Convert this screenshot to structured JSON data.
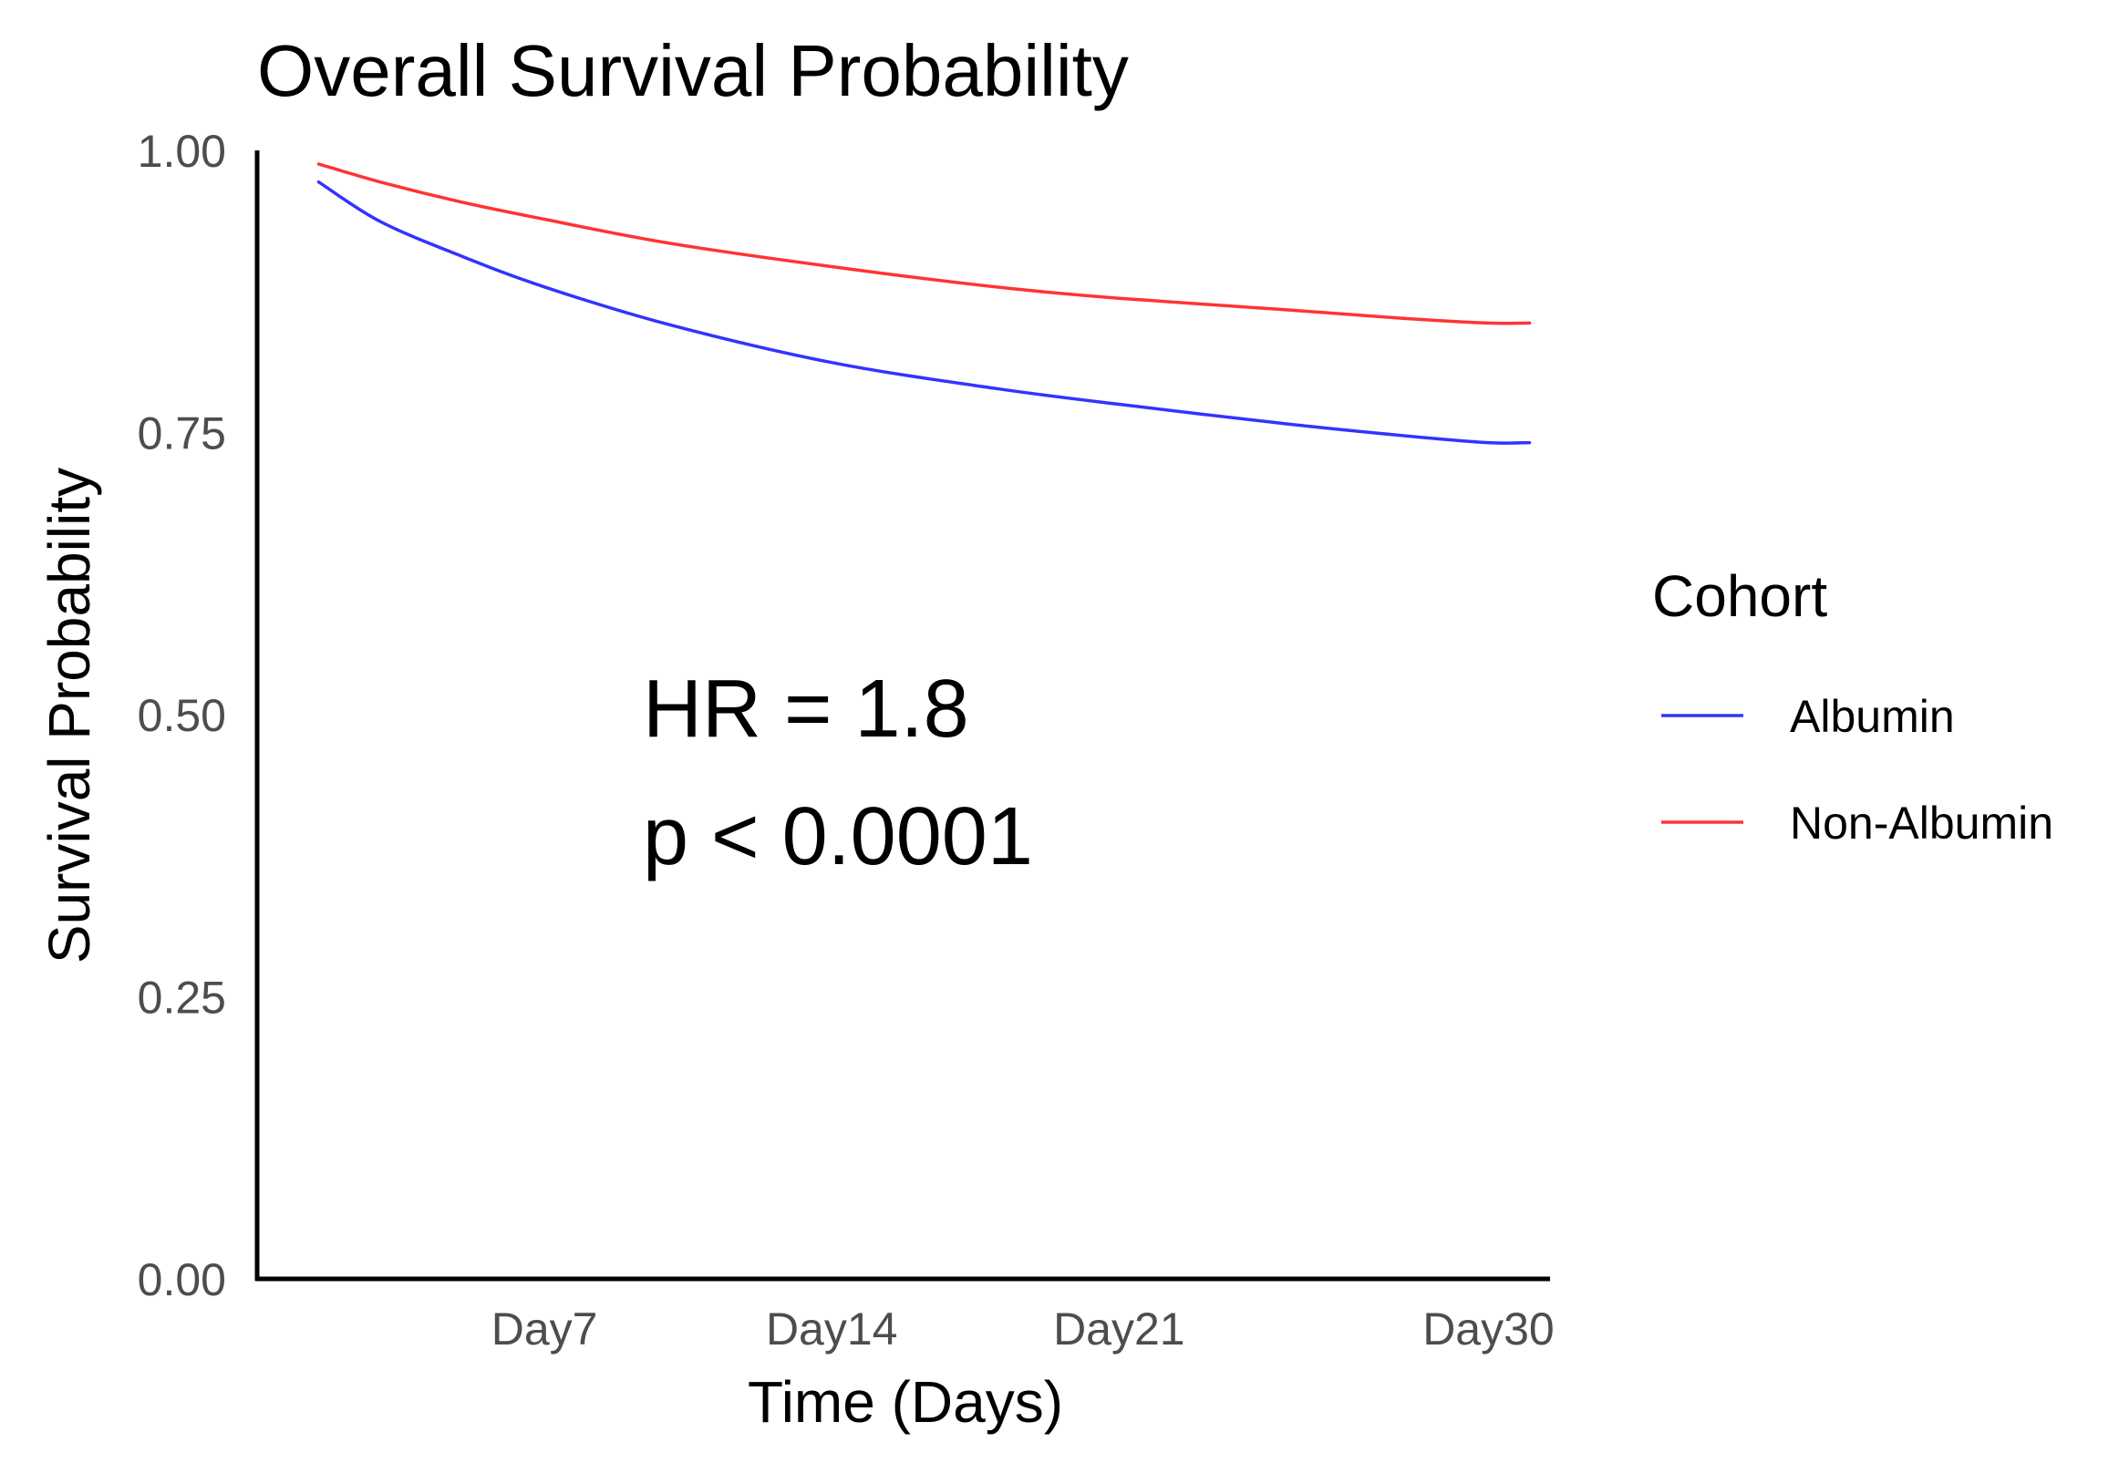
{
  "chart_data": {
    "type": "line",
    "title": "Overall Survival Probability",
    "xlabel": "Time (Days)",
    "ylabel": "Survival Probability",
    "xlim": [
      0,
      31.5
    ],
    "ylim": [
      0,
      1
    ],
    "x_ticks": [
      {
        "value": 7,
        "label": "Day7"
      },
      {
        "value": 14,
        "label": "Day14"
      },
      {
        "value": 21,
        "label": "Day21"
      },
      {
        "value": 30,
        "label": "Day30"
      }
    ],
    "y_ticks": [
      {
        "value": 0,
        "label": "0.00"
      },
      {
        "value": 0.25,
        "label": "0.25"
      },
      {
        "value": 0.5,
        "label": "0.50"
      },
      {
        "value": 0.75,
        "label": "0.75"
      },
      {
        "value": 1,
        "label": "1.00"
      }
    ],
    "grid": false,
    "legend": {
      "title": "Cohort",
      "position": "right"
    },
    "series": [
      {
        "name": "Albumin",
        "color": "#3333ff",
        "x": [
          1.5,
          3,
          5,
          7,
          10,
          14,
          18,
          21,
          25,
          28,
          30,
          31
        ],
        "y": [
          0.972,
          0.937,
          0.906,
          0.879,
          0.846,
          0.812,
          0.789,
          0.775,
          0.758,
          0.747,
          0.741,
          0.741
        ]
      },
      {
        "name": "Non-Albumin",
        "color": "#ff3333",
        "x": [
          1.5,
          3,
          5,
          7,
          10,
          14,
          18,
          21,
          25,
          28,
          30,
          31
        ],
        "y": [
          0.988,
          0.972,
          0.954,
          0.939,
          0.918,
          0.897,
          0.879,
          0.869,
          0.859,
          0.851,
          0.847,
          0.847
        ]
      }
    ],
    "annotations": [
      "HR = 1.8",
      "p < 0.0001"
    ]
  }
}
